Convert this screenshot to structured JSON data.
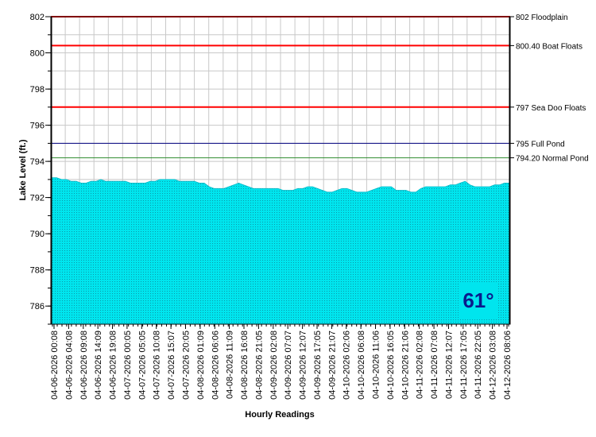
{
  "chart_data": {
    "type": "area",
    "xlabel": "Hourly Readings",
    "ylabel": "Lake Level (ft.)",
    "ylim": [
      785,
      802
    ],
    "y_ticks": [
      786,
      788,
      790,
      792,
      794,
      796,
      798,
      800,
      802
    ],
    "grid": true,
    "x_tick_labels": [
      "04-06-2026 00:08",
      "04-06-2026 04:08",
      "04-06-2026 09:08",
      "04-06-2026 14:09",
      "04-06-2026 19:08",
      "04-07-2026 00:05",
      "04-07-2026 05:05",
      "04-07-2026 10:08",
      "04-07-2026 15:07",
      "04-07-2026 20:05",
      "04-08-2026 01:09",
      "04-08-2026 06:06",
      "04-08-2026 11:09",
      "04-08-2026 16:08",
      "04-08-2026 21:05",
      "04-09-2026 02:08",
      "04-09-2026 07:07",
      "04-09-2026 12:07",
      "04-09-2026 17:05",
      "04-09-2026 21:07",
      "04-10-2026 02:06",
      "04-10-2026 06:08",
      "04-10-2026 11:06",
      "04-10-2026 16:05",
      "04-10-2026 21:06",
      "04-11-2026 02:08",
      "04-11-2026 07:08",
      "04-11-2026 12:07",
      "04-11-2026 17:05",
      "04-11-2026 22:05",
      "04-12-2026 03:08",
      "04-12-2026 08:06"
    ],
    "series": [
      {
        "values": [
          793.1,
          793.1,
          793.0,
          793.0,
          792.9,
          792.9,
          792.8,
          792.8,
          792.9,
          792.9,
          793.0,
          792.9,
          792.9,
          792.9,
          792.9,
          792.9,
          792.8,
          792.8,
          792.8,
          792.8,
          792.9,
          792.9,
          793.0,
          793.0,
          793.0,
          793.0,
          792.9,
          792.9,
          792.9,
          792.9,
          792.8,
          792.8,
          792.6,
          792.5,
          792.5,
          792.5,
          792.6,
          792.7,
          792.8,
          792.7,
          792.6,
          792.5,
          792.5,
          792.5,
          792.5,
          792.5,
          792.5,
          792.4,
          792.4,
          792.4,
          792.5,
          792.5,
          792.6,
          792.6,
          792.5,
          792.4,
          792.3,
          792.3,
          792.4,
          792.5,
          792.5,
          792.4,
          792.3,
          792.3,
          792.3,
          792.4,
          792.5,
          792.6,
          792.6,
          792.6,
          792.4,
          792.4,
          792.4,
          792.3,
          792.3,
          792.5,
          792.6,
          792.6,
          792.6,
          792.6,
          792.6,
          792.7,
          792.7,
          792.8,
          792.9,
          792.7,
          792.6,
          792.6,
          792.6,
          792.6,
          792.7,
          792.7,
          792.8,
          792.8
        ],
        "color": "#00e5ee"
      }
    ],
    "reference_lines": [
      {
        "value": 802,
        "label": "802 Floodplain",
        "color": "#ff0000"
      },
      {
        "value": 800.4,
        "label": "800.40 Boat Floats",
        "color": "#ff0000"
      },
      {
        "value": 797,
        "label": "797 Sea Doo Floats",
        "color": "#ff0000"
      },
      {
        "value": 795,
        "label": "795 Full Pond",
        "color": "#000080"
      },
      {
        "value": 794.2,
        "label": "794.20 Normal Pond",
        "color": "#2e8b2e"
      }
    ]
  },
  "temperature_badge": {
    "text": "61°",
    "background": "#00e5ee",
    "color": "#0a1a8c"
  }
}
